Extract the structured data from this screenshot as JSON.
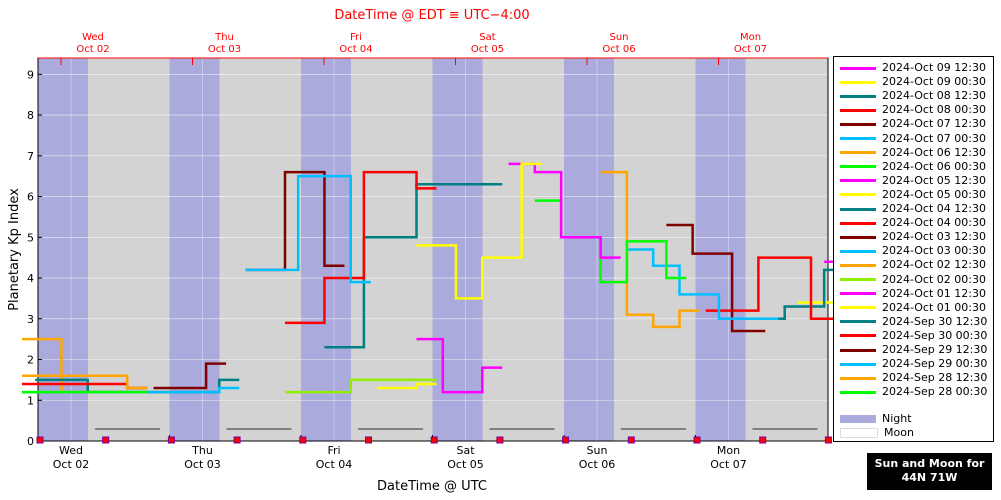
{
  "chart_data": {
    "type": "line",
    "title": "DateTime @ EDT ≡ UTC−4:00",
    "xlabel": "DateTime @ UTC",
    "ylabel": "Planetary Kp Index",
    "ylim": [
      0,
      9.4
    ],
    "yticks": [
      "0",
      "1",
      "2",
      "3",
      "4",
      "5",
      "6",
      "7",
      "8",
      "9"
    ],
    "top_day_labels": [
      {
        "day": "Wed",
        "date": "Oct 02"
      },
      {
        "day": "Thu",
        "date": "Oct 03"
      },
      {
        "day": "Fri",
        "date": "Oct 04"
      },
      {
        "day": "Sat",
        "date": "Oct 05"
      },
      {
        "day": "Sun",
        "date": "Oct 06"
      },
      {
        "day": "Mon",
        "date": "Oct 07"
      }
    ],
    "bottom_day_labels": [
      {
        "day": "Wed",
        "date": "Oct 02"
      },
      {
        "day": "Thu",
        "date": "Oct 03"
      },
      {
        "day": "Fri",
        "date": "Oct 04"
      },
      {
        "day": "Sat",
        "date": "Oct 05"
      },
      {
        "day": "Sun",
        "date": "Oct 06"
      },
      {
        "day": "Mon",
        "date": "Oct 07"
      }
    ],
    "grid": true,
    "legend_position": "right",
    "series": [
      {
        "name": "2024-Oct 09 12:30",
        "color": "#ff00ff",
        "values": [
          [
            6.1,
            4.4
          ],
          [
            6.3,
            4.5
          ],
          [
            6.5,
            4.5
          ]
        ]
      },
      {
        "name": "2024-Oct 09 00:30",
        "color": "#ffff00",
        "values": [
          [
            5.9,
            3.4
          ],
          [
            6.2,
            3.6
          ],
          [
            6.5,
            3.4
          ]
        ]
      },
      {
        "name": "2024-Oct 08 12:30",
        "color": "#008080",
        "values": [
          [
            5.5,
            3.0
          ],
          [
            5.8,
            3.3
          ],
          [
            6.1,
            4.2
          ],
          [
            6.3,
            4.4
          ]
        ]
      },
      {
        "name": "2024-Oct 08 00:30",
        "color": "#ff0000",
        "values": [
          [
            5.2,
            3.2
          ],
          [
            5.6,
            4.5
          ],
          [
            6.0,
            3.0
          ],
          [
            6.3,
            3.0
          ]
        ]
      },
      {
        "name": "2024-Oct 07 12:30",
        "color": "#800000",
        "values": [
          [
            4.9,
            5.3
          ],
          [
            5.1,
            4.6
          ],
          [
            5.4,
            2.7
          ],
          [
            5.5,
            2.7
          ]
        ]
      },
      {
        "name": "2024-Oct 07 00:30",
        "color": "#00bfff",
        "values": [
          [
            4.6,
            4.7
          ],
          [
            4.8,
            4.3
          ],
          [
            5.0,
            3.6
          ],
          [
            5.3,
            3.0
          ],
          [
            5.6,
            3.0
          ]
        ]
      },
      {
        "name": "2024-Oct 06 12:30",
        "color": "#ffa500",
        "values": [
          [
            4.4,
            6.6
          ],
          [
            4.6,
            3.1
          ],
          [
            4.8,
            2.8
          ],
          [
            5.0,
            3.2
          ]
        ]
      },
      {
        "name": "2024-Oct 06 00:30",
        "color": "#00ff00",
        "values": [
          [
            3.9,
            5.9
          ],
          [
            4.1,
            5.0
          ],
          [
            4.4,
            3.9
          ],
          [
            4.6,
            4.9
          ],
          [
            4.9,
            4.0
          ]
        ]
      },
      {
        "name": "2024-Oct 05 12:30",
        "color": "#ff00ff",
        "values": [
          [
            3.7,
            6.8
          ],
          [
            3.9,
            6.6
          ],
          [
            4.1,
            5.0
          ],
          [
            4.4,
            4.5
          ]
        ]
      },
      {
        "name": "2024-Oct 05 00:30",
        "color": "#ffff00",
        "values": [
          [
            3.0,
            4.8
          ],
          [
            3.3,
            3.5
          ],
          [
            3.5,
            4.5
          ],
          [
            3.8,
            6.8
          ]
        ]
      },
      {
        "name": "2024-Oct 04 12:30",
        "color": "#008080",
        "values": [
          [
            2.3,
            2.3
          ],
          [
            2.6,
            5.0
          ],
          [
            3.0,
            6.3
          ],
          [
            3.5,
            6.3
          ]
        ]
      },
      {
        "name": "2024-Oct 04 00:30",
        "color": "#ff0000",
        "values": [
          [
            2.0,
            2.9
          ],
          [
            2.3,
            4.0
          ],
          [
            2.6,
            6.6
          ],
          [
            3.0,
            6.2
          ]
        ]
      },
      {
        "name": "2024-Oct 03 12:30",
        "color": "#800000",
        "values": [
          [
            1.7,
            4.2
          ],
          [
            2.0,
            6.6
          ],
          [
            2.3,
            4.3
          ]
        ]
      },
      {
        "name": "2024-Oct 03 00:30",
        "color": "#00bfff",
        "values": [
          [
            1.7,
            4.2
          ],
          [
            2.1,
            6.5
          ],
          [
            2.5,
            3.9
          ]
        ]
      },
      {
        "name": "2024-Oct 02 12:30",
        "color": "#ffa500",
        "values": [
          [
            0.0,
            2.5
          ],
          [
            0.3,
            1.2
          ],
          [
            1.0,
            1.2
          ]
        ]
      },
      {
        "name": "2024-Oct 02 00:30",
        "color": "#90ee00",
        "values": [
          [
            2.0,
            1.2
          ],
          [
            2.5,
            1.5
          ],
          [
            3.0,
            1.5
          ]
        ]
      },
      {
        "name": "2024-Oct 01 12:30",
        "color": "#ff00ff",
        "values": [
          [
            3.0,
            2.5
          ],
          [
            3.2,
            1.2
          ],
          [
            3.5,
            1.8
          ]
        ]
      },
      {
        "name": "2024-Oct 01 00:30",
        "color": "#ffff00",
        "values": [
          [
            2.7,
            1.3
          ],
          [
            3.0,
            1.4
          ]
        ]
      },
      {
        "name": "2024-Sep 30 12:30",
        "color": "#008080",
        "values": [
          [
            0.1,
            1.5
          ],
          [
            0.5,
            1.2
          ],
          [
            1.5,
            1.5
          ]
        ]
      },
      {
        "name": "2024-Sep 30 00:30",
        "color": "#ff0000",
        "values": [
          [
            0.0,
            1.4
          ],
          [
            0.8,
            1.3
          ]
        ]
      },
      {
        "name": "2024-Sep 29 12:30",
        "color": "#800000",
        "values": [
          [
            1.0,
            1.3
          ],
          [
            1.4,
            1.9
          ]
        ]
      },
      {
        "name": "2024-Sep 29 00:30",
        "color": "#00bfff",
        "values": [
          [
            0.0,
            1.2
          ],
          [
            1.5,
            1.3
          ]
        ]
      },
      {
        "name": "2024-Sep 28 12:30",
        "color": "#ffa500",
        "values": [
          [
            0.0,
            1.6
          ],
          [
            0.8,
            1.3
          ]
        ]
      },
      {
        "name": "2024-Sep 28 00:30",
        "color": "#00ff00",
        "values": [
          [
            0.0,
            1.2
          ],
          [
            0.8,
            1.2
          ]
        ]
      }
    ],
    "legend_extra": [
      {
        "name": "Night",
        "color": "#aaaadd"
      },
      {
        "name": "Moon",
        "color": "#ffffff"
      }
    ]
  },
  "badge": {
    "line1": "Sun and Moon for",
    "line2": "44N 71W"
  }
}
